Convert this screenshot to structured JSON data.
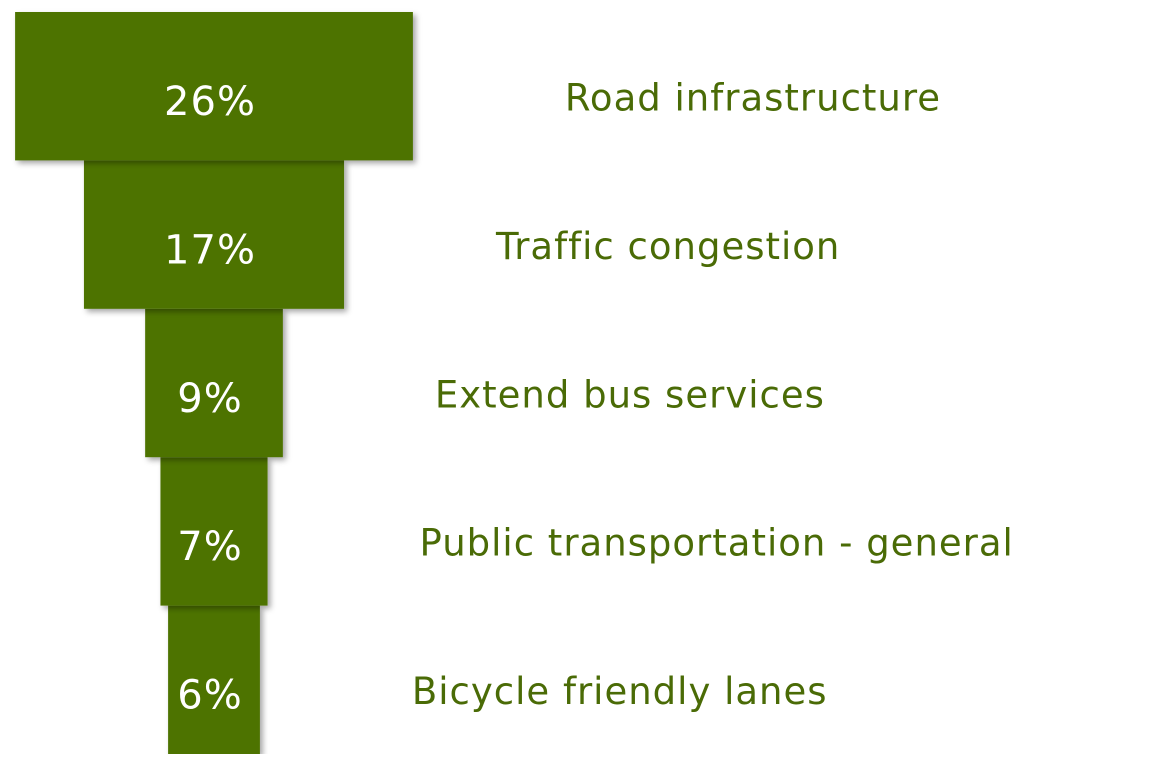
{
  "chart_data": {
    "type": "funnel",
    "categories": [
      "Road infrastructure",
      "Traffic congestion",
      "Extend bus services",
      "Public transportation - general",
      "Bicycle friendly lanes"
    ],
    "values": [
      26,
      17,
      9,
      7,
      6
    ],
    "value_labels": [
      "26%",
      "17%",
      "9%",
      "7%",
      "6%"
    ],
    "color": "#4d7300",
    "label_color": "#4a6b06"
  }
}
